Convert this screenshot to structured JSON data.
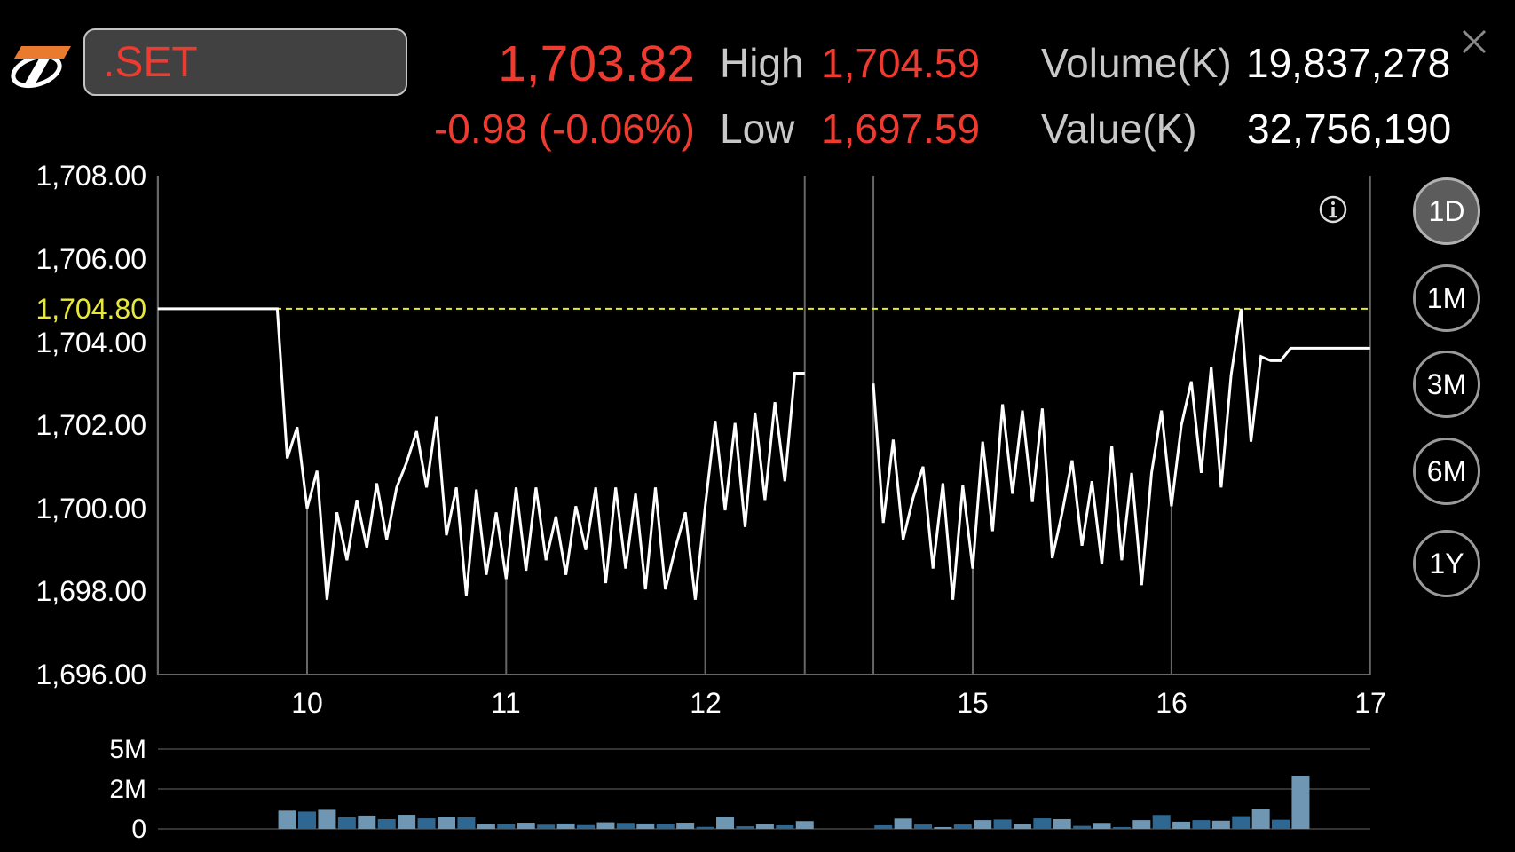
{
  "header": {
    "symbol": ".SET",
    "last_price": "1,703.82",
    "change": "-0.98 (-0.06%)",
    "high_label": "High",
    "high_value": "1,704.59",
    "low_label": "Low",
    "low_value": "1,697.59",
    "volume_label": "Volume(K)",
    "volume_value": "19,837,278",
    "value_label": "Value(K)",
    "value_value": "32,756,190",
    "close_icon": "close-icon",
    "logo_icon": "brand-logo"
  },
  "periods": [
    {
      "label": "1D",
      "active": true
    },
    {
      "label": "1M",
      "active": false
    },
    {
      "label": "3M",
      "active": false
    },
    {
      "label": "6M",
      "active": false
    },
    {
      "label": "1Y",
      "active": false
    }
  ],
  "info_icon": "info-icon",
  "colors": {
    "up_down_red": "#ee3a2f",
    "reference_line": "#e8e83a",
    "price_line": "#ffffff",
    "volume_light": "#6f97b3",
    "volume_dark": "#2e6892",
    "grid": "#666666"
  },
  "chart_data": [
    {
      "type": "line",
      "title": "",
      "xlabel": "",
      "ylabel": "",
      "ylim": [
        1696,
        1708
      ],
      "yticks": [
        "1,708.00",
        "1,706.00",
        "1,704.00",
        "1,702.00",
        "1,700.00",
        "1,698.00",
        "1,696.00"
      ],
      "ytick_values": [
        1708,
        1706,
        1704,
        1702,
        1700,
        1698,
        1696
      ],
      "xticks": [
        "10",
        "11",
        "12",
        "15",
        "16",
        "17"
      ],
      "xtick_values": [
        10,
        11,
        12,
        15,
        16,
        17
      ],
      "sessions": [
        [
          9.25,
          12.5
        ],
        [
          14.5,
          17
        ]
      ],
      "reference_line": {
        "value": 1704.8,
        "label": "1,704.80"
      },
      "series": [
        {
          "x": [
            9.25,
            9.85,
            9.9,
            9.95,
            10.0,
            10.05,
            10.1,
            10.15,
            10.2,
            10.25,
            10.3,
            10.35,
            10.4,
            10.45,
            10.5,
            10.55,
            10.6,
            10.65,
            10.7,
            10.75,
            10.8,
            10.85,
            10.9,
            10.95,
            11.0,
            11.05,
            11.1,
            11.15,
            11.2,
            11.25,
            11.3,
            11.35,
            11.4,
            11.45,
            11.5,
            11.55,
            11.6,
            11.65,
            11.7,
            11.75,
            11.8,
            11.85,
            11.9,
            11.95,
            12.0,
            12.05,
            12.1,
            12.15,
            12.2,
            12.25,
            12.3,
            12.35,
            12.4,
            12.45,
            12.5
          ],
          "y": [
            1704.8,
            1704.8,
            1701.2,
            1701.95,
            1700.0,
            1700.9,
            1697.8,
            1699.9,
            1698.75,
            1700.2,
            1699.05,
            1700.6,
            1699.25,
            1700.5,
            1701.1,
            1701.85,
            1700.5,
            1702.2,
            1699.35,
            1700.5,
            1697.9,
            1700.45,
            1698.4,
            1699.9,
            1698.3,
            1700.5,
            1698.5,
            1700.5,
            1698.75,
            1699.8,
            1698.4,
            1700.05,
            1699.0,
            1700.5,
            1698.2,
            1700.5,
            1698.55,
            1700.35,
            1698.05,
            1700.5,
            1698.05,
            1699.05,
            1699.9,
            1697.8,
            1700.05,
            1702.1,
            1699.95,
            1702.05,
            1699.55,
            1702.3,
            1700.2,
            1702.55,
            1700.65,
            1703.25,
            1703.25
          ]
        },
        {
          "x": [
            14.5,
            14.55,
            14.6,
            14.65,
            14.7,
            14.75,
            14.8,
            14.85,
            14.9,
            14.95,
            15.0,
            15.05,
            15.1,
            15.15,
            15.2,
            15.25,
            15.3,
            15.35,
            15.4,
            15.45,
            15.5,
            15.55,
            15.6,
            15.65,
            15.7,
            15.75,
            15.8,
            15.85,
            15.9,
            15.95,
            16.0,
            16.05,
            16.1,
            16.15,
            16.2,
            16.25,
            16.3,
            16.35,
            16.4,
            16.45,
            16.5,
            16.55,
            16.6,
            17.0
          ],
          "y": [
            1703.0,
            1699.65,
            1701.65,
            1699.25,
            1700.25,
            1701.0,
            1698.55,
            1700.6,
            1697.8,
            1700.55,
            1698.55,
            1701.6,
            1699.45,
            1702.5,
            1700.35,
            1702.35,
            1700.15,
            1702.4,
            1698.8,
            1699.9,
            1701.15,
            1699.1,
            1700.65,
            1698.65,
            1701.5,
            1698.75,
            1700.85,
            1698.15,
            1700.85,
            1702.35,
            1700.05,
            1702.0,
            1703.05,
            1700.85,
            1703.4,
            1700.5,
            1703.2,
            1704.8,
            1701.6,
            1703.65,
            1703.55,
            1703.55,
            1703.85,
            1703.85
          ]
        }
      ]
    },
    {
      "type": "bar",
      "title": "",
      "yticks": [
        "5M",
        "2M",
        "0"
      ],
      "ytick_values": [
        5,
        2,
        0
      ],
      "unit": "M",
      "series": [
        {
          "x": [
            9.9,
            10.0,
            10.1,
            10.2,
            10.3,
            10.4,
            10.5,
            10.6,
            10.7,
            10.8,
            10.9,
            11.0,
            11.1,
            11.2,
            11.3,
            11.4,
            11.5,
            11.6,
            11.7,
            11.8,
            11.9,
            12.0,
            12.1,
            12.2,
            12.3,
            12.4,
            12.5
          ],
          "values": [
            0.92,
            0.87,
            0.96,
            0.58,
            0.67,
            0.49,
            0.71,
            0.53,
            0.62,
            0.58,
            0.25,
            0.24,
            0.31,
            0.21,
            0.27,
            0.19,
            0.33,
            0.3,
            0.27,
            0.25,
            0.31,
            0.1,
            0.62,
            0.13,
            0.24,
            0.18,
            0.39
          ]
        },
        {
          "x": [
            14.55,
            14.65,
            14.75,
            14.85,
            14.95,
            15.05,
            15.15,
            15.25,
            15.35,
            15.45,
            15.55,
            15.65,
            15.75,
            15.85,
            15.95,
            16.05,
            16.15,
            16.25,
            16.35,
            16.45,
            16.55,
            16.65
          ],
          "values": [
            0.18,
            0.52,
            0.22,
            0.09,
            0.22,
            0.44,
            0.47,
            0.24,
            0.53,
            0.49,
            0.15,
            0.3,
            0.09,
            0.44,
            0.7,
            0.36,
            0.44,
            0.41,
            0.64,
            0.98,
            0.46,
            3.0
          ]
        }
      ]
    }
  ]
}
